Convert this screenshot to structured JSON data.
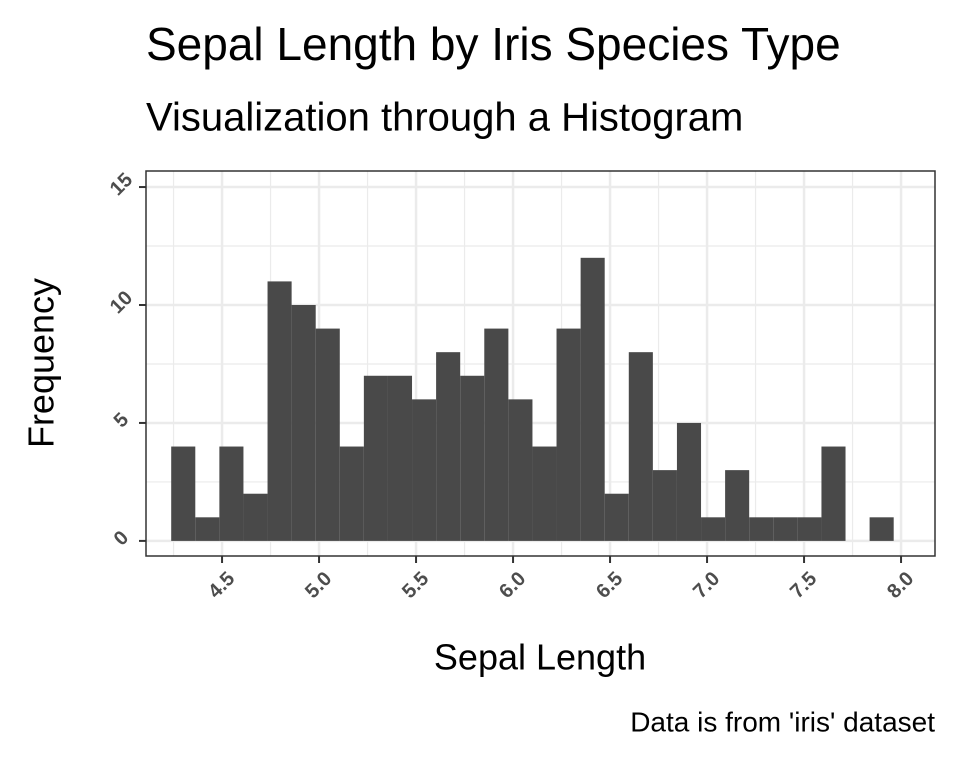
{
  "chart_data": {
    "type": "histogram",
    "title": "Sepal Length by Iris Species Type",
    "subtitle": "Visualization through a Histogram",
    "x_label": "Sepal Length",
    "y_label": "Frequency",
    "caption": "Data is from 'iris' dataset",
    "bins": [
      4.2379,
      4.3621,
      4.4862,
      4.6103,
      4.7345,
      4.8586,
      4.9828,
      5.1069,
      5.231,
      5.3552,
      5.4793,
      5.6034,
      5.7276,
      5.8517,
      5.9759,
      6.1,
      6.2241,
      6.3483,
      6.4724,
      6.5966,
      6.7207,
      6.8448,
      6.969,
      7.0931,
      7.2172,
      7.3414,
      7.4655,
      7.5897,
      7.7138,
      7.8379,
      7.9621
    ],
    "values": [
      4,
      1,
      4,
      2,
      11,
      10,
      9,
      4,
      7,
      7,
      6,
      8,
      7,
      9,
      6,
      4,
      9,
      12,
      2,
      8,
      3,
      5,
      1,
      3,
      1,
      1,
      1,
      4,
      0,
      1
    ],
    "color": "#494949",
    "xlim": [
      4.108,
      8.175
    ],
    "ylim": [
      -0.64,
      15.68
    ],
    "xticks": [
      4.5,
      {
        "value": 5,
        "label": "5.0"
      },
      5.5,
      {
        "value": 6,
        "label": "6.0"
      },
      6.5,
      {
        "value": 7,
        "label": "7.0"
      },
      7.5,
      {
        "value": 8,
        "label": "8.0"
      }
    ],
    "yticks": [
      0,
      5,
      10,
      15
    ],
    "grid": true
  }
}
